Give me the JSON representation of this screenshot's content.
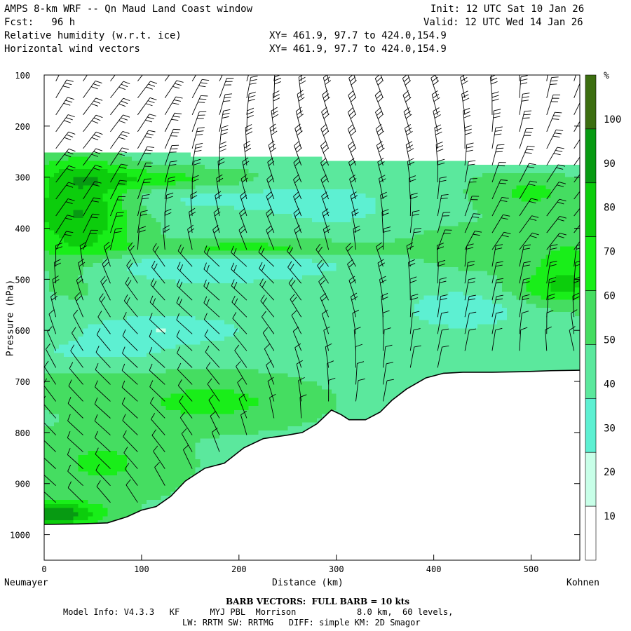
{
  "header": {
    "title": "AMPS 8-km WRF -- Qn Maud Land Coast window",
    "init": "Init: 12 UTC Sat 10 Jan 26",
    "fcst": "Fcst:   96 h",
    "valid": "Valid: 12 UTC Wed 14 Jan 26",
    "field1": "Relative humidity (w.r.t. ice)",
    "field2": "Horizontal wind vectors",
    "xy1": "XY= 461.9, 97.7 to 424.0,154.9",
    "xy2": "XY= 461.9, 97.7 to 424.0,154.9"
  },
  "axes": {
    "ylabel": "Pressure (hPa)",
    "xlabel": "Distance (km)",
    "left_end": "Neumayer",
    "right_end": "Kohnen"
  },
  "footer": {
    "barb": "BARB VECTORS:  FULL BARB = 10 kts",
    "model_info": "Model Info: V4.3.3   KF      MYJ PBL  Morrison            8.0 km,  60 levels,",
    "physics": "LW: RRTM SW: RRTMG   DIFF: simple KM: 2D Smagor"
  },
  "chart_data": {
    "type": "heatmap",
    "title": "Relative humidity (w.r.t. ice)",
    "xlabel": "Distance (km)",
    "ylabel": "Pressure (hPa)",
    "xlim": [
      0,
      550
    ],
    "ylim": [
      1050,
      100
    ],
    "x_ticks": [
      0,
      100,
      200,
      300,
      400,
      500
    ],
    "y_ticks": [
      100,
      200,
      300,
      400,
      500,
      600,
      700,
      800,
      900,
      1000
    ],
    "colorbar": {
      "unit": "%",
      "ticks": [
        10,
        20,
        30,
        40,
        50,
        60,
        70,
        80,
        90,
        100
      ],
      "bins": [
        {
          "min": 0,
          "max": 30,
          "color": "#ffffff"
        },
        {
          "min": 30,
          "max": 40,
          "color": "#c8ffe8"
        },
        {
          "min": 40,
          "max": 50,
          "color": "#5df0d2"
        },
        {
          "min": 50,
          "max": 60,
          "color": "#5be89d"
        },
        {
          "min": 60,
          "max": 70,
          "color": "#45dd61"
        },
        {
          "min": 70,
          "max": 80,
          "color": "#19ee19"
        },
        {
          "min": 80,
          "max": 90,
          "color": "#0ccd0c"
        },
        {
          "min": 90,
          "max": 100,
          "color": "#079a12"
        },
        {
          "min": 100,
          "max": 110,
          "color": "#3c6e10"
        }
      ]
    },
    "terrain_surface_hPa": [
      [
        0,
        980
      ],
      [
        35,
        979
      ],
      [
        65,
        977
      ],
      [
        85,
        965
      ],
      [
        100,
        952
      ],
      [
        115,
        945
      ],
      [
        130,
        925
      ],
      [
        145,
        895
      ],
      [
        165,
        870
      ],
      [
        185,
        860
      ],
      [
        205,
        830
      ],
      [
        225,
        812
      ],
      [
        250,
        805
      ],
      [
        265,
        800
      ],
      [
        280,
        783
      ],
      [
        295,
        756
      ],
      [
        305,
        765
      ],
      [
        313,
        775
      ],
      [
        330,
        775
      ],
      [
        345,
        760
      ],
      [
        357,
        737
      ],
      [
        372,
        715
      ],
      [
        392,
        693
      ],
      [
        410,
        684
      ],
      [
        430,
        682
      ],
      [
        460,
        682
      ],
      [
        490,
        681
      ],
      [
        520,
        679
      ],
      [
        550,
        678
      ]
    ],
    "moist_layer_top_hPa": [
      [
        0,
        252
      ],
      [
        100,
        254
      ],
      [
        200,
        258
      ],
      [
        300,
        265
      ],
      [
        400,
        270
      ],
      [
        500,
        276
      ],
      [
        550,
        280
      ]
    ],
    "wind_barbs_kts": "mostly 10-25 kts aloft, light near surface; barbs drawn on ~28 km spacing",
    "annotations": [
      "Neumayer",
      "Kohnen"
    ]
  }
}
